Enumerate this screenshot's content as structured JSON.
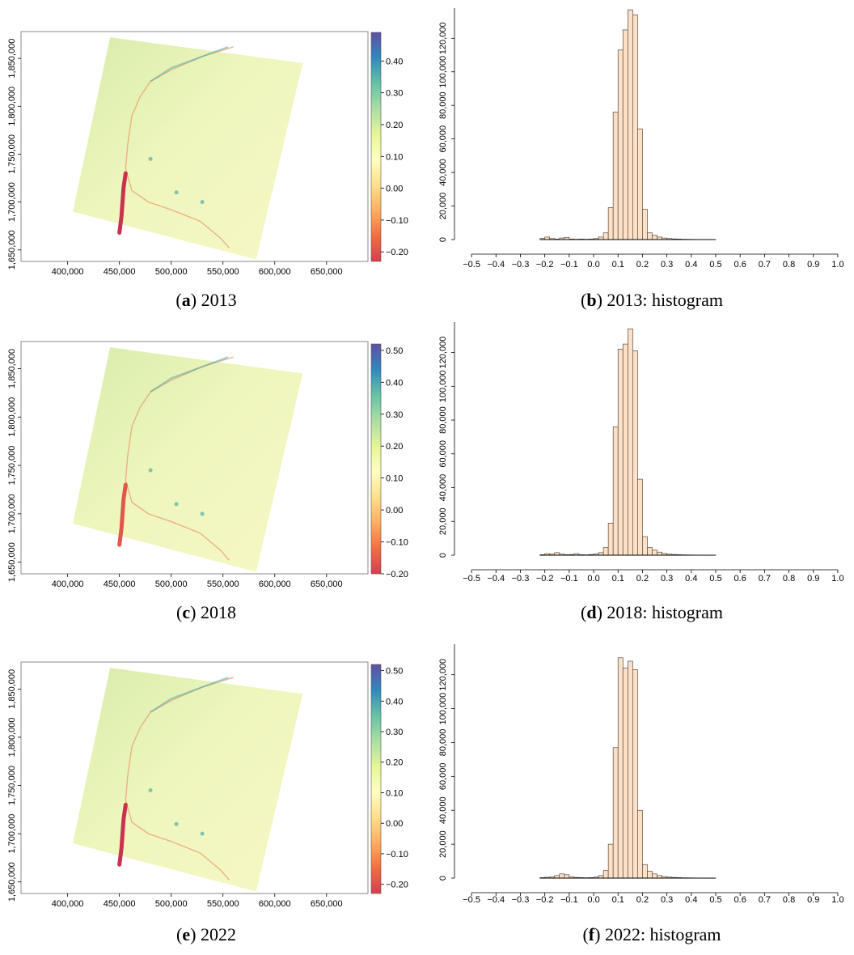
{
  "chart_data": [
    {
      "type": "heatmap",
      "caption_letter": "a",
      "caption_text": "2013",
      "x_ticks": [
        "400,000",
        "450,000",
        "500,000",
        "550,000",
        "600,000",
        "650,000"
      ],
      "x_tick_values": [
        400000,
        450000,
        500000,
        550000,
        600000,
        650000
      ],
      "y_ticks": [
        "1,650,000",
        "1,700,000",
        "1,750,000",
        "1,800,000",
        "1,850,000"
      ],
      "y_tick_values": [
        1650000,
        1700000,
        1750000,
        1800000,
        1850000
      ],
      "xlim": [
        355000,
        690000
      ],
      "ylim": [
        1638000,
        1878000
      ],
      "colorbar_ticks": [
        "0.40",
        "0.30",
        "0.20",
        "0.10",
        "0.00",
        "−0.10",
        "−0.20"
      ],
      "colorbar_values": [
        0.4,
        0.3,
        0.2,
        0.1,
        0.0,
        -0.1,
        -0.2
      ],
      "colorbar_range": [
        -0.23,
        0.49
      ],
      "colorscale": [
        "#d53e4f",
        "#f46d43",
        "#fdae61",
        "#fee08b",
        "#ffffbf",
        "#e6f598",
        "#abdda4",
        "#66c2a5",
        "#3288bd",
        "#5e4fa2"
      ]
    },
    {
      "type": "bar",
      "caption_letter": "b",
      "caption_text": "2013: histogram",
      "x_ticks": [
        "−0.5",
        "−0.4",
        "−0.3",
        "−0.2",
        "−0.1",
        "0.0",
        "0.1",
        "0.2",
        "0.3",
        "0.4",
        "0.5",
        "0.6",
        "0.7",
        "0.8",
        "0.9",
        "1.0"
      ],
      "x_tick_values": [
        -0.5,
        -0.4,
        -0.3,
        -0.2,
        -0.1,
        0.0,
        0.1,
        0.2,
        0.3,
        0.4,
        0.5,
        0.6,
        0.7,
        0.8,
        0.9,
        1.0
      ],
      "y_ticks": [
        "0",
        "20,000",
        "40,000",
        "60,000",
        "80,000",
        "100,000",
        "120,000"
      ],
      "y_tick_values": [
        0,
        20000,
        40000,
        60000,
        80000,
        100000,
        120000
      ],
      "xlim": [
        -0.55,
        1.03
      ],
      "ylim": [
        0,
        138000
      ],
      "bin_start": -0.22,
      "bin_width": 0.02,
      "bin_counts": [
        700,
        1500,
        600,
        300,
        900,
        1300,
        300,
        200,
        300,
        200,
        300,
        600,
        1500,
        4000,
        19000,
        76000,
        113000,
        125000,
        137000,
        134000,
        66000,
        18000,
        4000,
        2500,
        1500,
        900,
        600,
        400,
        300,
        200,
        150,
        100,
        60,
        40,
        20,
        10
      ]
    },
    {
      "type": "heatmap",
      "caption_letter": "c",
      "caption_text": "2018",
      "x_ticks": [
        "400,000",
        "450,000",
        "500,000",
        "550,000",
        "600,000",
        "650,000"
      ],
      "x_tick_values": [
        400000,
        450000,
        500000,
        550000,
        600000,
        650000
      ],
      "y_ticks": [
        "1,650,000",
        "1,700,000",
        "1,750,000",
        "1,800,000",
        "1,850,000"
      ],
      "y_tick_values": [
        1650000,
        1700000,
        1750000,
        1800000,
        1850000
      ],
      "xlim": [
        355000,
        690000
      ],
      "ylim": [
        1638000,
        1878000
      ],
      "colorbar_ticks": [
        "0.50",
        "0.40",
        "0.30",
        "0.20",
        "0.10",
        "0.00",
        "−0.10",
        "−0.20"
      ],
      "colorbar_values": [
        0.5,
        0.4,
        0.3,
        0.2,
        0.1,
        0.0,
        -0.1,
        -0.2
      ],
      "colorbar_range": [
        -0.2,
        0.52
      ],
      "colorscale": [
        "#d53e4f",
        "#f46d43",
        "#fdae61",
        "#fee08b",
        "#ffffbf",
        "#e6f598",
        "#abdda4",
        "#66c2a5",
        "#3288bd",
        "#5e4fa2"
      ]
    },
    {
      "type": "bar",
      "caption_letter": "d",
      "caption_text": "2018: histogram",
      "x_ticks": [
        "−0.5",
        "−0.4",
        "−0.3",
        "−0.2",
        "−0.1",
        "0.0",
        "0.1",
        "0.2",
        "0.3",
        "0.4",
        "0.5",
        "0.6",
        "0.7",
        "0.8",
        "0.9",
        "1.0"
      ],
      "x_tick_values": [
        -0.5,
        -0.4,
        -0.3,
        -0.2,
        -0.1,
        0.0,
        0.1,
        0.2,
        0.3,
        0.4,
        0.5,
        0.6,
        0.7,
        0.8,
        0.9,
        1.0
      ],
      "y_ticks": [
        "0",
        "20,000",
        "40,000",
        "60,000",
        "80,000",
        "100,000",
        "120,000"
      ],
      "y_tick_values": [
        0,
        20000,
        40000,
        60000,
        80000,
        100000,
        120000
      ],
      "xlim": [
        -0.55,
        1.03
      ],
      "ylim": [
        0,
        138000
      ],
      "bin_start": -0.22,
      "bin_width": 0.02,
      "bin_counts": [
        300,
        900,
        600,
        1500,
        700,
        300,
        400,
        900,
        300,
        200,
        400,
        700,
        1500,
        4500,
        19000,
        76000,
        122000,
        125000,
        134000,
        121000,
        45000,
        11000,
        4500,
        3000,
        1800,
        1000,
        600,
        400,
        300,
        200,
        150,
        100,
        60,
        40,
        20,
        10
      ]
    },
    {
      "type": "heatmap",
      "caption_letter": "e",
      "caption_text": "2022",
      "x_ticks": [
        "400,000",
        "450,000",
        "500,000",
        "550,000",
        "600,000",
        "650,000"
      ],
      "x_tick_values": [
        400000,
        450000,
        500000,
        550000,
        600000,
        650000
      ],
      "y_ticks": [
        "1,650,000",
        "1,700,000",
        "1,750,000",
        "1,800,000",
        "1,850,000"
      ],
      "y_tick_values": [
        1650000,
        1700000,
        1750000,
        1800000,
        1850000
      ],
      "xlim": [
        355000,
        690000
      ],
      "ylim": [
        1638000,
        1878000
      ],
      "colorbar_ticks": [
        "0.50",
        "0.40",
        "0.30",
        "0.20",
        "0.10",
        "0.00",
        "−0.10",
        "−0.20"
      ],
      "colorbar_values": [
        0.5,
        0.4,
        0.3,
        0.2,
        0.1,
        0.0,
        -0.1,
        -0.2
      ],
      "colorbar_range": [
        -0.23,
        0.52
      ],
      "colorscale": [
        "#d53e4f",
        "#f46d43",
        "#fdae61",
        "#fee08b",
        "#ffffbf",
        "#e6f598",
        "#abdda4",
        "#66c2a5",
        "#3288bd",
        "#5e4fa2"
      ]
    },
    {
      "type": "bar",
      "caption_letter": "f",
      "caption_text": "2022: histogram",
      "x_ticks": [
        "−0.5",
        "−0.4",
        "−0.3",
        "−0.2",
        "−0.1",
        "0.0",
        "0.1",
        "0.2",
        "0.3",
        "0.4",
        "0.5",
        "0.6",
        "0.7",
        "0.8",
        "0.9",
        "1.0"
      ],
      "x_tick_values": [
        -0.5,
        -0.4,
        -0.3,
        -0.2,
        -0.1,
        0.0,
        0.1,
        0.2,
        0.3,
        0.4,
        0.5,
        0.6,
        0.7,
        0.8,
        0.9,
        1.0
      ],
      "y_ticks": [
        "0",
        "20,000",
        "40,000",
        "60,000",
        "80,000",
        "100,000",
        "120,000"
      ],
      "y_tick_values": [
        0,
        20000,
        40000,
        60000,
        80000,
        100000,
        120000
      ],
      "xlim": [
        -0.55,
        1.03
      ],
      "ylim": [
        0,
        138000
      ],
      "bin_start": -0.22,
      "bin_width": 0.02,
      "bin_counts": [
        300,
        500,
        700,
        1500,
        2500,
        2000,
        700,
        400,
        300,
        200,
        300,
        600,
        1500,
        4500,
        20000,
        77000,
        130000,
        124000,
        128000,
        123000,
        40000,
        8000,
        4000,
        2500,
        1500,
        900,
        600,
        400,
        300,
        200,
        150,
        100,
        60,
        40,
        20,
        10
      ]
    }
  ]
}
